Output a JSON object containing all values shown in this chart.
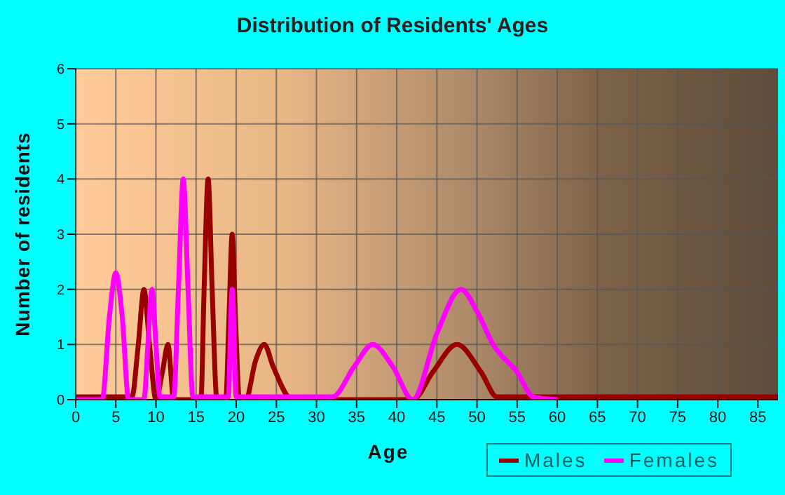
{
  "chart_data": {
    "type": "line",
    "title": "Distribution of Residents' Ages",
    "xlabel": "Age",
    "ylabel": "Number of residents",
    "xlim": [
      0,
      87.5
    ],
    "xticks": [
      0,
      5,
      10,
      15,
      20,
      25,
      30,
      35,
      40,
      45,
      50,
      55,
      60,
      65,
      70,
      75,
      80,
      85
    ],
    "ylim": [
      0,
      6
    ],
    "yticks": [
      0,
      1,
      2,
      3,
      4,
      5,
      6
    ],
    "grid": true,
    "legend": "bottom right",
    "marker": "none",
    "line_style": "solid",
    "series": [
      {
        "name": "Males",
        "color": "#990000",
        "x": [
          0,
          7,
          7.8,
          8.5,
          9.2,
          10,
          10.8,
          11.5,
          12.2,
          15.6,
          16,
          16.5,
          17,
          17.6,
          18.7,
          19.1,
          19.5,
          19.9,
          20.4,
          21.2,
          22.4,
          23.5,
          24.6,
          27,
          42,
          44.5,
          47.5,
          50.5,
          52.5,
          87.5
        ],
        "values": [
          0.05,
          0.05,
          1,
          2,
          1,
          0,
          0.5,
          1,
          0,
          0,
          2,
          4,
          2,
          0,
          0,
          1.5,
          3,
          1.5,
          0,
          0,
          0.7,
          1,
          0.6,
          0,
          0,
          0.5,
          1,
          0.5,
          0.05,
          0.05
        ]
      },
      {
        "name": "Females",
        "color": "#ff00ff",
        "x": [
          0,
          3.3,
          4.2,
          5,
          5.8,
          6.6,
          8.5,
          9,
          9.5,
          10,
          10.5,
          12.2,
          12.8,
          13.4,
          14,
          14.6,
          19,
          19.5,
          20,
          21,
          32,
          34.7,
          37,
          39.5,
          42,
          45,
          48,
          50,
          52,
          55,
          57,
          60
        ],
        "values": [
          0,
          0,
          1.5,
          2.3,
          1.5,
          0,
          0,
          1,
          2,
          1,
          0.05,
          0.05,
          2,
          4,
          2,
          0.05,
          0.05,
          2,
          0.05,
          0.05,
          0.05,
          0.6,
          1,
          0.6,
          0,
          1.2,
          2,
          1.6,
          1,
          0.5,
          0.05,
          0
        ]
      }
    ]
  }
}
